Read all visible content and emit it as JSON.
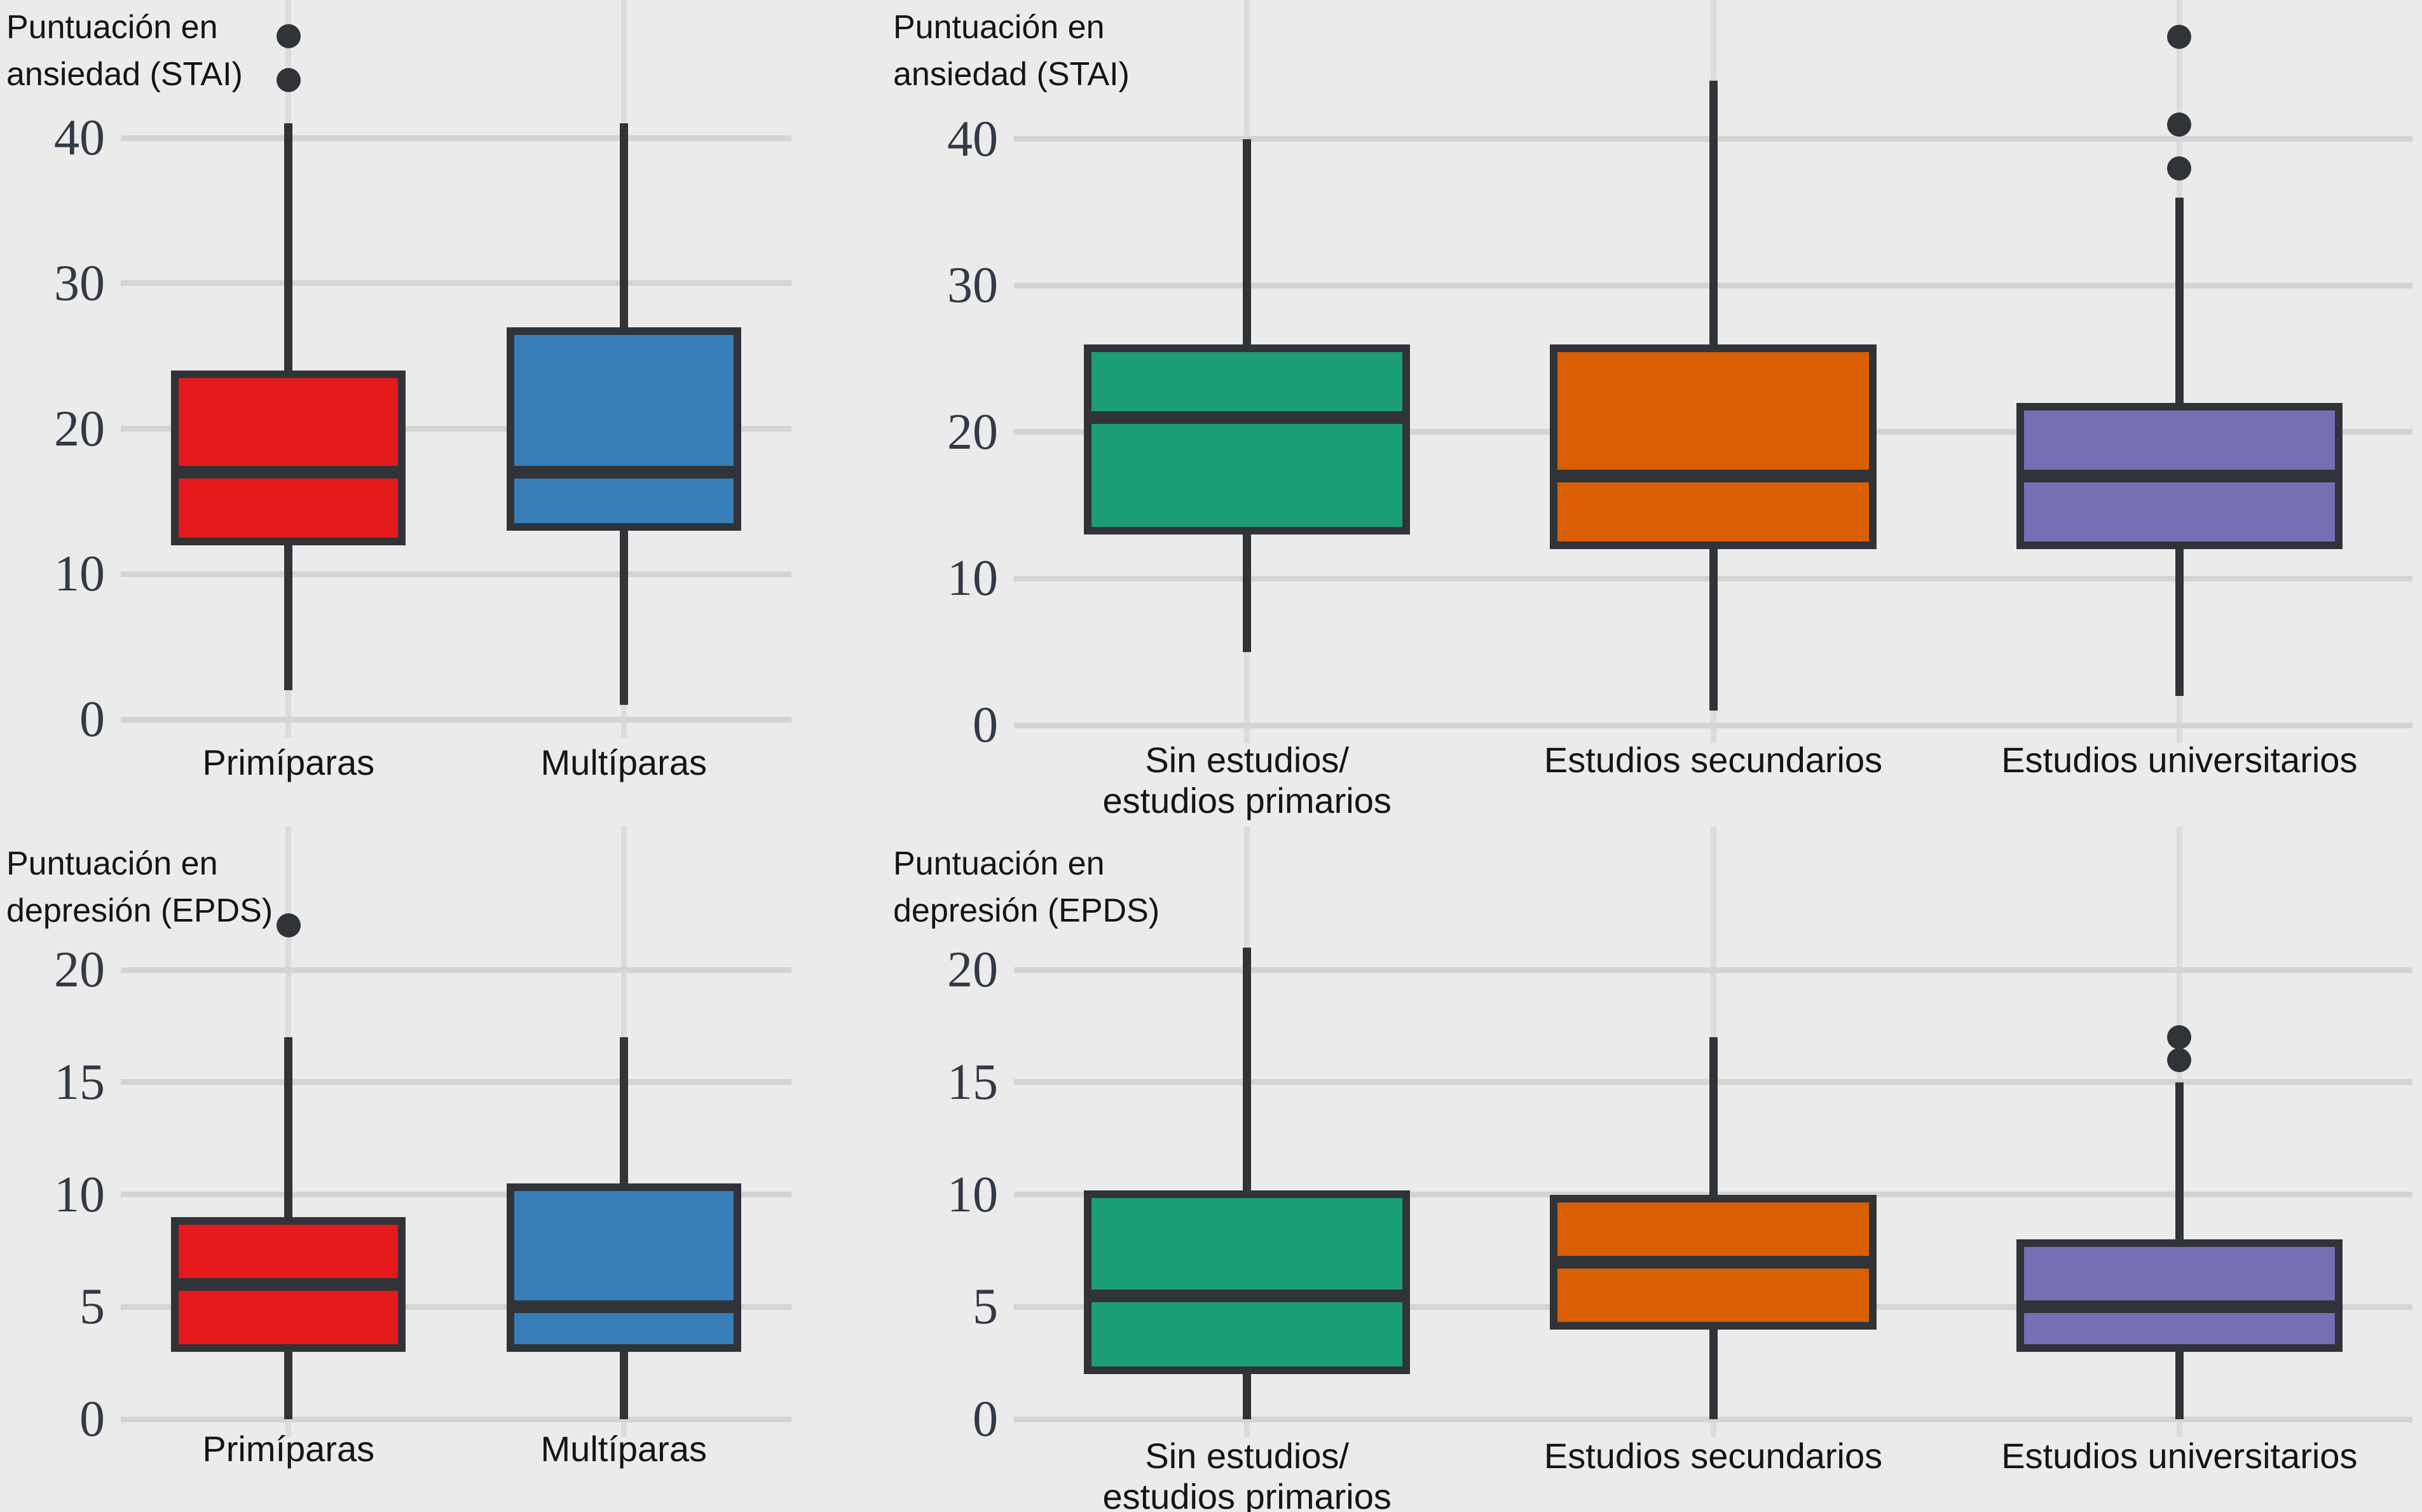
{
  "page": {
    "background_color": "#EBEBEB",
    "grid_color": "#D4D4D4",
    "category_line_color": "#DCDCDC",
    "line_color": "#303438",
    "tick_text_color": "#333A46",
    "text_color": "#141414"
  },
  "chart_data": [
    {
      "id": "stai-by-parity",
      "type": "boxplot",
      "title_lines": [
        "Puntuación en",
        "ansiedad (STAI)"
      ],
      "ylabel": "Puntuación en ansiedad (STAI)",
      "ylim": [
        0,
        49.5
      ],
      "yticks": [
        0,
        10,
        20,
        30,
        40
      ],
      "grid": true,
      "categories": [
        {
          "label_lines": [
            "Primíparas"
          ],
          "color": "#E41A1C",
          "stats": {
            "whisker_low": 2,
            "q1": 12,
            "median": 17,
            "q3": 24,
            "whisker_high": 41
          },
          "outliers": [
            44,
            47
          ]
        },
        {
          "label_lines": [
            "Multíparas"
          ],
          "color": "#377EB8",
          "stats": {
            "whisker_low": 1,
            "q1": 13,
            "median": 17,
            "q3": 27,
            "whisker_high": 41
          },
          "outliers": []
        }
      ]
    },
    {
      "id": "stai-by-education",
      "type": "boxplot",
      "title_lines": [
        "Puntuación en",
        "ansiedad (STAI)"
      ],
      "ylabel": "Puntuación en ansiedad (STAI)",
      "ylim": [
        0,
        49.5
      ],
      "yticks": [
        0,
        10,
        20,
        30,
        40
      ],
      "grid": true,
      "categories": [
        {
          "label_lines": [
            "Sin estudios/",
            "estudios primarios"
          ],
          "color": "#1B9E77",
          "stats": {
            "whisker_low": 5,
            "q1": 13,
            "median": 21,
            "q3": 26,
            "whisker_high": 40
          },
          "outliers": []
        },
        {
          "label_lines": [
            "Estudios secundarios"
          ],
          "color": "#D95F02",
          "stats": {
            "whisker_low": 1,
            "q1": 12,
            "median": 17,
            "q3": 26,
            "whisker_high": 44
          },
          "outliers": []
        },
        {
          "label_lines": [
            "Estudios universitarios"
          ],
          "color": "#7570B3",
          "stats": {
            "whisker_low": 2,
            "q1": 12,
            "median": 17,
            "q3": 22,
            "whisker_high": 36
          },
          "outliers": [
            38,
            41,
            47
          ]
        }
      ]
    },
    {
      "id": "epds-by-parity",
      "type": "boxplot",
      "title_lines": [
        "Puntuación en",
        "depresión (EPDS)"
      ],
      "ylabel": "Puntuación en depresión (EPDS)",
      "ylim": [
        0,
        26.4
      ],
      "yticks": [
        0,
        5,
        10,
        15,
        20
      ],
      "grid": true,
      "categories": [
        {
          "label_lines": [
            "Primíparas"
          ],
          "color": "#E41A1C",
          "stats": {
            "whisker_low": 0,
            "q1": 3,
            "median": 6,
            "q3": 9,
            "whisker_high": 17
          },
          "outliers": [
            22
          ]
        },
        {
          "label_lines": [
            "Multíparas"
          ],
          "color": "#377EB8",
          "stats": {
            "whisker_low": 0,
            "q1": 3,
            "median": 5,
            "q3": 10.5,
            "whisker_high": 17
          },
          "outliers": []
        }
      ]
    },
    {
      "id": "epds-by-education",
      "type": "boxplot",
      "title_lines": [
        "Puntuación en",
        "depresión (EPDS)"
      ],
      "ylabel": "Puntuación en depresión (EPDS)",
      "ylim": [
        0,
        26.4
      ],
      "yticks": [
        0,
        5,
        10,
        15,
        20
      ],
      "grid": true,
      "categories": [
        {
          "label_lines": [
            "Sin estudios/",
            "estudios primarios"
          ],
          "color": "#1B9E77",
          "stats": {
            "whisker_low": 0,
            "q1": 2,
            "median": 5.5,
            "q3": 10.2,
            "whisker_high": 21
          },
          "outliers": []
        },
        {
          "label_lines": [
            "Estudios secundarios"
          ],
          "color": "#D95F02",
          "stats": {
            "whisker_low": 0,
            "q1": 4,
            "median": 7,
            "q3": 10,
            "whisker_high": 17
          },
          "outliers": []
        },
        {
          "label_lines": [
            "Estudios universitarios"
          ],
          "color": "#7570B3",
          "stats": {
            "whisker_low": 0,
            "q1": 3,
            "median": 5,
            "q3": 8,
            "whisker_high": 15
          },
          "outliers": [
            16,
            17
          ]
        }
      ]
    }
  ]
}
